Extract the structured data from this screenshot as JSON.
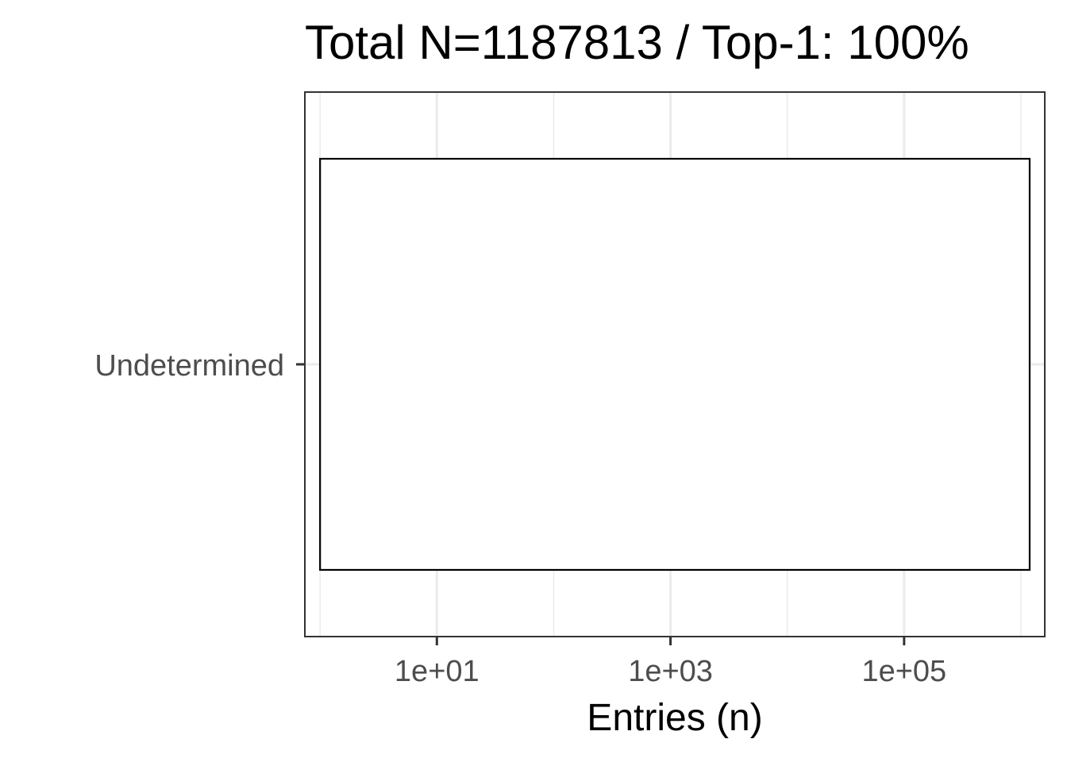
{
  "chart_data": {
    "type": "bar",
    "orientation": "horizontal",
    "title": "Total N=1187813 / Top-1: 100%",
    "xlabel": "Entries (n)",
    "ylabel": "",
    "x_scale": "log10",
    "xlim": [
      0.741,
      1600000
    ],
    "x_ticks": [
      {
        "value": 10,
        "label": "1e+01"
      },
      {
        "value": 1000,
        "label": "1e+03"
      },
      {
        "value": 100000,
        "label": "1e+05"
      }
    ],
    "x_minor_gridlines": [
      1,
      100,
      10000,
      1000000
    ],
    "categories": [
      "Undetermined"
    ],
    "values": [
      1187813
    ],
    "bar_start": 1,
    "bar_fill": "#ffffff",
    "bar_stroke": "#000000",
    "grid": true,
    "grid_color": "#ebebeb",
    "panel_border_color": "#333333",
    "legend": "none"
  }
}
